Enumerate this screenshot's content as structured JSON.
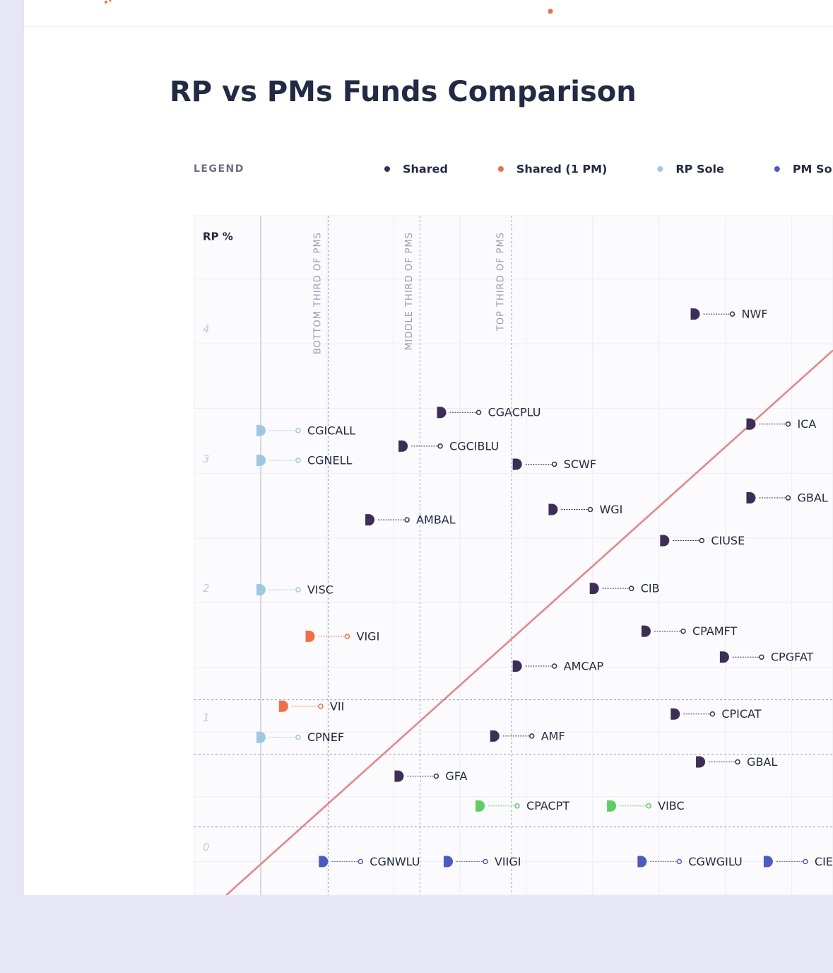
{
  "chart_data": {
    "type": "scatter",
    "title": "RP vs PMs Funds Comparison",
    "legend_title": "LEGEND",
    "y_label": "RP %",
    "ylim": [
      -0.26,
      4.99
    ],
    "xlim": [
      -0.5,
      4.31
    ],
    "yticks": [
      0,
      1,
      2,
      3,
      4
    ],
    "ygrid": [
      0,
      0.5,
      1,
      1.5,
      2,
      2.5,
      3,
      3.5,
      4,
      4.5
    ],
    "xgrid": [
      0,
      0.5,
      1,
      1.5,
      2,
      2.5,
      3,
      3.5,
      4
    ],
    "x_thresholds": [
      {
        "value": 0.51,
        "label": "BOTTOM THIRD OF PMS"
      },
      {
        "value": 1.2,
        "label": "MIDDLE THIRD OF PMS"
      },
      {
        "value": 1.89,
        "label": "TOP THIRD OF PMS"
      }
    ],
    "y_thresholds": [
      1.25,
      0.83,
      0.27
    ],
    "reference_line": {
      "x": [
        -0.26,
        4.31
      ],
      "y": [
        -0.26,
        3.95
      ],
      "color": "#f08080"
    },
    "series": [
      {
        "name": "Shared",
        "color": "#3d2e57",
        "points": [
          {
            "label": "NWF",
            "x": 3.27,
            "y": 4.23
          },
          {
            "label": "CGACPLU",
            "x": 1.36,
            "y": 3.47
          },
          {
            "label": "ICA",
            "x": 3.69,
            "y": 3.38
          },
          {
            "label": "CGCIBLU",
            "x": 1.07,
            "y": 3.21
          },
          {
            "label": "SCWF",
            "x": 1.93,
            "y": 3.07
          },
          {
            "label": "GBAL",
            "x": 3.69,
            "y": 2.81
          },
          {
            "label": "WGI",
            "x": 2.2,
            "y": 2.72
          },
          {
            "label": "AMBAL",
            "x": 0.82,
            "y": 2.64
          },
          {
            "label": "CIUSE",
            "x": 3.04,
            "y": 2.48
          },
          {
            "label": "CIB",
            "x": 2.51,
            "y": 2.11
          },
          {
            "label": "CPAMFT",
            "x": 2.9,
            "y": 1.78
          },
          {
            "label": "CPGFAT",
            "x": 3.49,
            "y": 1.58
          },
          {
            "label": "AMCAP",
            "x": 1.93,
            "y": 1.51
          },
          {
            "label": "CPICAT",
            "x": 3.12,
            "y": 1.14
          },
          {
            "label": "AMF",
            "x": 1.76,
            "y": 0.97
          },
          {
            "label": "GBAL",
            "x": 3.31,
            "y": 0.77
          },
          {
            "label": "GFA",
            "x": 1.04,
            "y": 0.66
          }
        ]
      },
      {
        "name": "Shared (1 PM)",
        "color": "#f46d43",
        "points": [
          {
            "label": "VIGI",
            "x": 0.37,
            "y": 1.74
          },
          {
            "label": "VII",
            "x": 0.17,
            "y": 1.2
          }
        ]
      },
      {
        "name": "RP Sole",
        "color": "#9ec7e4",
        "points": [
          {
            "label": "CGICALL",
            "x": 0,
            "y": 3.33
          },
          {
            "label": "CGNELL",
            "x": 0,
            "y": 3.1
          },
          {
            "label": "VISC",
            "x": 0,
            "y": 2.1
          },
          {
            "label": "CPNEF",
            "x": 0,
            "y": 0.96
          }
        ]
      },
      {
        "name": "PM Sole",
        "color": "#4a5bc4",
        "points": [
          {
            "label": "CGNWLU",
            "x": 0.47,
            "y": 0
          },
          {
            "label": "VIIGI",
            "x": 1.41,
            "y": 0
          },
          {
            "label": "CGWGILU",
            "x": 2.87,
            "y": 0
          },
          {
            "label": "CIE",
            "x": 3.82,
            "y": 0
          }
        ]
      },
      {
        "color": "#5ccf63",
        "points": [
          {
            "label": "CPACPT",
            "x": 1.65,
            "y": 0.43
          },
          {
            "label": "VIBC",
            "x": 2.64,
            "y": 0.43
          }
        ]
      }
    ]
  }
}
